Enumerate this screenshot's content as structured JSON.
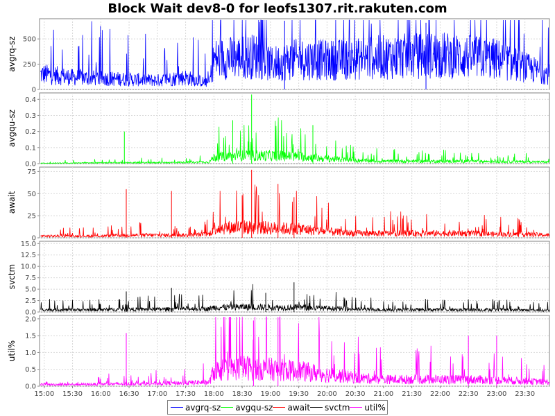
{
  "title": "Block Wait dev8-0 for leofs1307.rit.rakuten.com",
  "chart_data": {
    "type": "line",
    "x_ticks": [
      "15:00",
      "15:30",
      "16:00",
      "16:30",
      "17:00",
      "17:30",
      "18:00",
      "18:30",
      "19:00",
      "19:30",
      "20:00",
      "20:30",
      "21:00",
      "21:30",
      "22:00",
      "22:30",
      "23:00",
      "23:30"
    ],
    "x_range": [
      "14:55",
      "23:56"
    ],
    "grid": true,
    "legend_position": "bottom",
    "panels": [
      {
        "name": "avgrq-sz",
        "ylabel": "avgrq-sz",
        "color": "#0000ff",
        "ylim": [
          0,
          700
        ],
        "y_ticks": [
          "0",
          "250",
          "500"
        ],
        "y_tick_values": [
          0,
          250,
          500
        ],
        "series": {
          "x": [
            "15:00",
            "15:30",
            "16:00",
            "16:30",
            "17:00",
            "17:30",
            "17:55",
            "18:00",
            "18:30",
            "18:45",
            "19:00",
            "19:30",
            "20:00",
            "20:30",
            "21:00",
            "21:30",
            "22:00",
            "22:30",
            "23:00",
            "23:30",
            "23:55"
          ],
          "y": [
            150,
            120,
            110,
            100,
            90,
            120,
            60,
            300,
            320,
            330,
            250,
            300,
            290,
            300,
            320,
            330,
            340,
            320,
            300,
            220,
            150
          ]
        },
        "peaks": {
          "x": [
            "19:15",
            "21:45"
          ],
          "y": [
            680,
            660
          ]
        }
      },
      {
        "name": "avgqu-sz",
        "ylabel": "avgqu-sz",
        "color": "#00ff00",
        "ylim": [
          0,
          0.44
        ],
        "y_ticks": [
          "0.0",
          "0.1",
          "0.2",
          "0.3",
          "0.4"
        ],
        "y_tick_values": [
          0,
          0.1,
          0.2,
          0.3,
          0.4
        ],
        "series": {
          "x": [
            "15:00",
            "15:30",
            "16:00",
            "16:30",
            "17:00",
            "17:30",
            "17:55",
            "18:00",
            "18:30",
            "19:00",
            "19:30",
            "20:00",
            "20:30",
            "21:00",
            "21:30",
            "22:00",
            "22:30",
            "23:00",
            "23:30",
            "23:55"
          ],
          "y": [
            0.003,
            0.004,
            0.005,
            0.006,
            0.006,
            0.008,
            0.01,
            0.04,
            0.05,
            0.05,
            0.045,
            0.03,
            0.02,
            0.015,
            0.015,
            0.015,
            0.015,
            0.012,
            0.012,
            0.01
          ]
        },
        "peaks": {
          "x": [
            "16:25",
            "18:40",
            "18:20",
            "19:45"
          ],
          "y": [
            0.2,
            0.43,
            0.27,
            0.24
          ]
        }
      },
      {
        "name": "await",
        "ylabel": "await",
        "color": "#ff0000",
        "ylim": [
          0,
          80
        ],
        "y_ticks": [
          "0",
          "25",
          "50",
          "75"
        ],
        "y_tick_values": [
          0,
          25,
          50,
          75
        ],
        "series": {
          "x": [
            "15:00",
            "15:30",
            "16:00",
            "16:30",
            "17:00",
            "17:30",
            "17:55",
            "18:00",
            "18:30",
            "19:00",
            "19:30",
            "20:00",
            "20:30",
            "21:00",
            "21:30",
            "22:00",
            "22:30",
            "23:00",
            "23:30",
            "23:55"
          ],
          "y": [
            2,
            2,
            2,
            3,
            3,
            3,
            4,
            11,
            12,
            11,
            10,
            7,
            5,
            5,
            5,
            5,
            5,
            4,
            4,
            3
          ]
        },
        "peaks": {
          "x": [
            "16:27",
            "17:15",
            "18:40",
            "19:08",
            "18:30",
            "19:25"
          ],
          "y": [
            55,
            53,
            77,
            61,
            48,
            46
          ]
        }
      },
      {
        "name": "svctm",
        "ylabel": "svctm",
        "color": "#000000",
        "ylim": [
          0,
          15.5
        ],
        "y_ticks": [
          "0.0",
          "2.5",
          "5.0",
          "7.5",
          "10.0",
          "12.5",
          "15.0"
        ],
        "y_tick_values": [
          0,
          2.5,
          5,
          7.5,
          10,
          12.5,
          15
        ],
        "series": {
          "x": [
            "15:00",
            "15:30",
            "16:00",
            "16:30",
            "17:00",
            "17:30",
            "17:55",
            "18:00",
            "18:30",
            "19:00",
            "19:30",
            "20:00",
            "20:30",
            "21:00",
            "21:30",
            "22:00",
            "22:30",
            "23:00",
            "23:30",
            "23:55"
          ],
          "y": [
            0.5,
            0.5,
            0.5,
            0.6,
            0.6,
            0.7,
            0.7,
            1.0,
            1.1,
            1.0,
            1.0,
            0.8,
            0.6,
            0.5,
            0.5,
            0.5,
            0.5,
            0.5,
            0.4,
            0.4
          ]
        },
        "peaks": {
          "x": [
            "16:27",
            "17:15",
            "19:25",
            "18:55"
          ],
          "y": [
            4.5,
            5.3,
            6.5,
            4.2
          ]
        }
      },
      {
        "name": "util%",
        "ylabel": "util%",
        "color": "#ff00ff",
        "ylim": [
          0,
          2.1
        ],
        "y_ticks": [
          "0.0",
          "0.5",
          "1.0",
          "1.5",
          "2.0"
        ],
        "y_tick_values": [
          0,
          0.5,
          1,
          1.5,
          2
        ],
        "series": {
          "x": [
            "15:00",
            "15:30",
            "16:00",
            "16:30",
            "17:00",
            "17:30",
            "17:55",
            "18:00",
            "18:30",
            "19:00",
            "19:30",
            "20:00",
            "20:30",
            "21:00",
            "21:30",
            "22:00",
            "22:30",
            "23:00",
            "23:30",
            "23:55"
          ],
          "y": [
            0.05,
            0.05,
            0.06,
            0.07,
            0.08,
            0.1,
            0.12,
            0.45,
            0.55,
            0.5,
            0.45,
            0.35,
            0.25,
            0.2,
            0.2,
            0.2,
            0.2,
            0.18,
            0.15,
            0.12
          ]
        },
        "peaks": {
          "x": [
            "16:27",
            "19:08",
            "18:42",
            "22:30",
            "23:00"
          ],
          "y": [
            1.58,
            2.05,
            1.95,
            1.5,
            1.5
          ]
        }
      }
    ]
  },
  "legend": [
    {
      "label": "avgrq-sz",
      "color": "#0000ff"
    },
    {
      "label": "avgqu-sz",
      "color": "#00ff00"
    },
    {
      "label": "await",
      "color": "#ff0000"
    },
    {
      "label": "svctm",
      "color": "#000000"
    },
    {
      "label": "util%",
      "color": "#ff00ff"
    }
  ]
}
